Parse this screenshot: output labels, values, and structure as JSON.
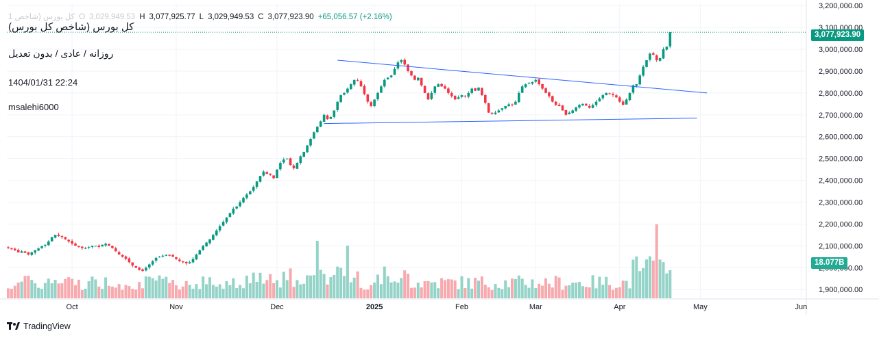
{
  "header": {
    "symbol_faded": "1 کل بورس (شاخص",
    "open_label": "O",
    "open_value": "3,029,949.53",
    "high_label": "H",
    "high_value": "3,077,925.77",
    "low_label": "L",
    "low_value": "3,029,949.53",
    "close_label": "C",
    "close_value": "3,077,923.90",
    "change": "+65,056.57 (+2.16%)"
  },
  "legend": {
    "title": "کل بورس (شاخص کل بورس)",
    "subtitle": "روزانه / عادی / بدون تعدیل",
    "datetime": "1404/01/31 22:24",
    "author": "msalehi6000"
  },
  "badges": {
    "last_price": "3,077,923.90",
    "volume": "18.077B"
  },
  "branding": {
    "logo_text": "TradingView"
  },
  "colors": {
    "up": "#089981",
    "down": "#f23645",
    "vol_up": "#94d3c7",
    "vol_down": "#f7a9ae",
    "trendline": "#2962ff",
    "price_line": "#089981"
  },
  "chart_data": {
    "type": "candlestick",
    "y_axis": {
      "ticks": [
        "1,900,000.00",
        "2,000,000.00",
        "2,100,000.00",
        "2,200,000.00",
        "2,300,000.00",
        "2,400,000.00",
        "2,500,000.00",
        "2,600,000.00",
        "2,700,000.00",
        "2,800,000.00",
        "2,900,000.00",
        "3,000,000.00",
        "3,100,000.00",
        "3,200,000.00"
      ],
      "range": [
        1860000,
        3210000
      ],
      "scale": "linear"
    },
    "x_axis": {
      "labels": [
        "Oct",
        "Nov",
        "Dec",
        "2025",
        "Feb",
        "Mar",
        "Apr",
        "May",
        "Jun"
      ],
      "label_bar_index": [
        19,
        50,
        80,
        109,
        135,
        157,
        182,
        206,
        236
      ]
    },
    "series_close": [
      2090000,
      2085000,
      2080000,
      2070000,
      2075000,
      2068000,
      2060000,
      2070000,
      2080000,
      2088000,
      2098000,
      2105000,
      2120000,
      2140000,
      2150000,
      2145000,
      2140000,
      2130000,
      2120000,
      2110000,
      2100000,
      2095000,
      2090000,
      2090000,
      2095000,
      2100000,
      2100000,
      2095000,
      2105000,
      2110000,
      2100000,
      2090000,
      2075000,
      2060000,
      2050000,
      2040000,
      2025000,
      2010000,
      2000000,
      1990000,
      1985000,
      2000000,
      2015000,
      2030000,
      2045000,
      2050000,
      2055000,
      2058000,
      2055000,
      2050000,
      2040000,
      2030000,
      2025000,
      2020000,
      2025000,
      2040000,
      2060000,
      2080000,
      2100000,
      2115000,
      2130000,
      2150000,
      2170000,
      2190000,
      2210000,
      2230000,
      2250000,
      2270000,
      2280000,
      2300000,
      2320000,
      2335000,
      2350000,
      2370000,
      2395000,
      2420000,
      2440000,
      2430000,
      2425000,
      2410000,
      2450000,
      2480000,
      2495000,
      2500000,
      2470000,
      2455000,
      2480000,
      2510000,
      2530000,
      2560000,
      2590000,
      2620000,
      2645000,
      2670000,
      2700000,
      2680000,
      2690000,
      2720000,
      2760000,
      2790000,
      2800000,
      2820000,
      2840000,
      2860000,
      2855000,
      2830000,
      2795000,
      2760000,
      2740000,
      2770000,
      2800000,
      2830000,
      2860000,
      2870000,
      2880000,
      2910000,
      2940000,
      2950000,
      2930000,
      2900000,
      2880000,
      2860000,
      2870000,
      2835000,
      2800000,
      2770000,
      2800000,
      2830000,
      2840000,
      2830000,
      2820000,
      2800000,
      2785000,
      2770000,
      2780000,
      2790000,
      2785000,
      2800000,
      2820000,
      2810000,
      2825000,
      2790000,
      2755000,
      2710000,
      2705000,
      2710000,
      2720000,
      2730000,
      2740000,
      2748000,
      2745000,
      2760000,
      2800000,
      2830000,
      2840000,
      2845000,
      2850000,
      2860000,
      2840000,
      2820000,
      2800000,
      2785000,
      2760000,
      2745000,
      2740000,
      2720000,
      2700000,
      2710000,
      2720000,
      2735000,
      2745000,
      2750000,
      2742000,
      2732000,
      2745000,
      2760000,
      2775000,
      2790000,
      2800000,
      2795000,
      2790000,
      2780000,
      2760000,
      2745000,
      2770000,
      2800000,
      2835000,
      2840000,
      2880000,
      2920000,
      2950000,
      2980000,
      2975000,
      2950000,
      2960000,
      3000000,
      3012000,
      3077924
    ],
    "volume_note": "Volume bars shown at bottom of chart; last volume 18.077B",
    "annotations": [
      {
        "type": "trendline",
        "from": {
          "bar": 98,
          "value": 2950000
        },
        "to": {
          "bar": 208,
          "value": 2800000
        }
      },
      {
        "type": "trendline",
        "from": {
          "bar": 94,
          "value": 2660000
        },
        "to": {
          "bar": 205,
          "value": 2685000
        }
      }
    ]
  }
}
